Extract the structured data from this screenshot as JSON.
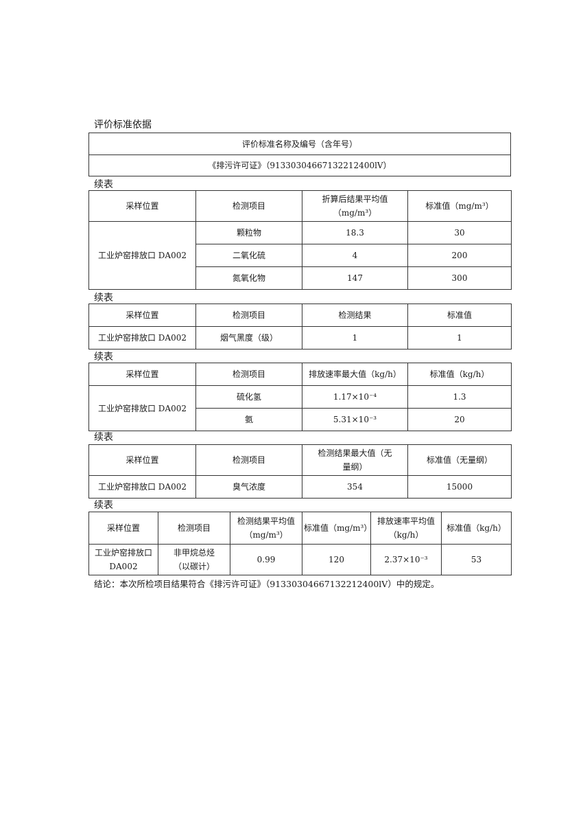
{
  "basis": {
    "caption": "评价标准依据",
    "header": "评价标准名称及编号（含年号）",
    "value": "《排污许可证》（91330304667132212400lV）"
  },
  "continued_label": "续表",
  "table_pollutants": {
    "headers": [
      "采样位置",
      "检测项目",
      "折算后结果平均值（mg/m³）",
      "标准值（mg/m³）"
    ],
    "location": "工业炉窑排放口 DA002",
    "rows": [
      {
        "item": "颗粒物",
        "result": "18.3",
        "standard": "30"
      },
      {
        "item": "二氧化硫",
        "result": "4",
        "standard": "200"
      },
      {
        "item": "氮氧化物",
        "result": "147",
        "standard": "300"
      }
    ]
  },
  "table_smoke": {
    "headers": [
      "采样位置",
      "检测项目",
      "检测结果",
      "标准值"
    ],
    "rows": [
      {
        "location": "工业炉窑排放口 DA002",
        "item": "烟气黑度（级）",
        "result": "1",
        "standard": "1"
      }
    ]
  },
  "table_rate": {
    "headers": [
      "采样位置",
      "检测项目",
      "排放速率最大值（kg/h）",
      "标准值（kg/h）"
    ],
    "location": "工业炉窑排放口 DA002",
    "rows": [
      {
        "item": "硫化氢",
        "result": "1.17×10⁻⁴",
        "standard": "1.3"
      },
      {
        "item": "氨",
        "result": "5.31×10⁻³",
        "standard": "20"
      }
    ]
  },
  "table_odor": {
    "headers": [
      "采样位置",
      "检测项目",
      "检测结果最大值（无量纲）",
      "标准值（无量纲）"
    ],
    "rows": [
      {
        "location": "工业炉窑排放口 DA002",
        "item": "臭气浓度",
        "result": "354",
        "standard": "15000"
      }
    ]
  },
  "table_nmhc": {
    "headers": [
      "采样位置",
      "检测项目",
      "检测结果平均值（mg/m³）",
      "标准值（mg/m³）",
      "排放速率平均值（kg/h）",
      "标准值（kg/h）"
    ],
    "rows": [
      {
        "location": "工业炉窑排放口 DA002",
        "item": "非甲烷总烃（以碳计）",
        "result": "0.99",
        "standard": "120",
        "rate": "2.37×10⁻³",
        "rate_standard": "53"
      }
    ]
  },
  "conclusion": "结论：本次所检项目结果符合《排污许可证》（91330304667132212400lV）中的规定。"
}
